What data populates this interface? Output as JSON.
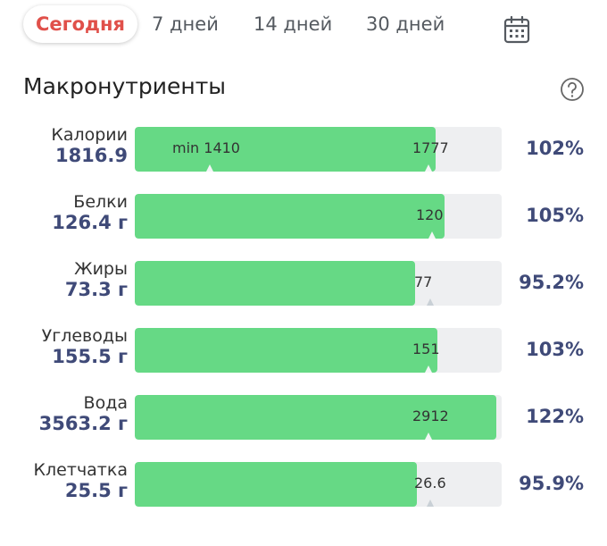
{
  "tabs": [
    {
      "label": "Сегодня",
      "active": true
    },
    {
      "label": "7 дней",
      "active": false
    },
    {
      "label": "14 дней",
      "active": false
    },
    {
      "label": "30 дней",
      "active": false
    }
  ],
  "calendar_icon": "calendar-icon",
  "section_title": "Макронутриенты",
  "help_icon": "help-icon",
  "colors": {
    "accent": "#e0504a",
    "fill": "#66d985",
    "value": "#3f4a78",
    "track": "#eeeff1"
  },
  "macros": [
    {
      "label": "Калории",
      "value": "1816.9",
      "goal": "1777",
      "min_label": "min 1410",
      "percent": "102%",
      "fill_ratio": 0.82,
      "goal_ratio": 0.8
    },
    {
      "label": "Белки",
      "value": "126.4 г",
      "goal": "120",
      "percent": "105%",
      "fill_ratio": 0.845,
      "goal_ratio": 0.81
    },
    {
      "label": "Жиры",
      "value": "73.3 г",
      "goal": "77",
      "percent": "95.2%",
      "fill_ratio": 0.765,
      "goal_ratio": 0.805
    },
    {
      "label": "Углеводы",
      "value": "155.5 г",
      "goal": "151",
      "percent": "103%",
      "fill_ratio": 0.825,
      "goal_ratio": 0.8
    },
    {
      "label": "Вода",
      "value": "3563.2 г",
      "goal": "2912",
      "percent": "122%",
      "fill_ratio": 0.985,
      "goal_ratio": 0.8
    },
    {
      "label": "Клетчатка",
      "value": "25.5 г",
      "goal": "26.6",
      "percent": "95.9%",
      "fill_ratio": 0.77,
      "goal_ratio": 0.805
    }
  ]
}
